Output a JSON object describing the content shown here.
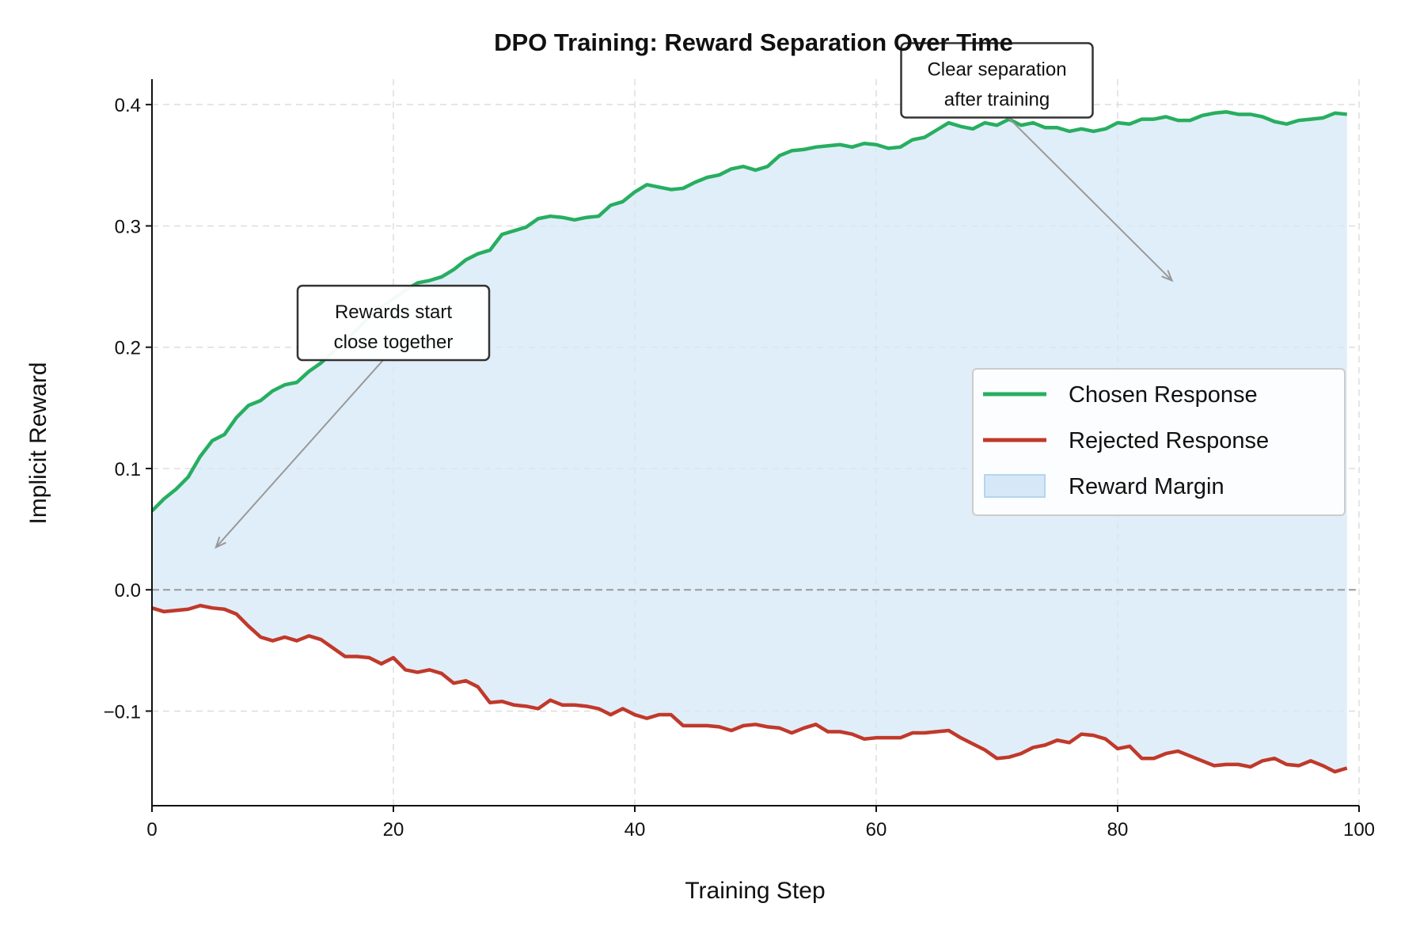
{
  "chart_data": {
    "type": "line",
    "title": "DPO Training: Reward Separation Over Time",
    "xlabel": "Training Step",
    "ylabel": "Implicit Reward",
    "xlim": [
      0,
      100
    ],
    "ylim": [
      -0.178,
      0.421
    ],
    "xticks": [
      0,
      20,
      40,
      60,
      80,
      100
    ],
    "xtick_labels": [
      "0",
      "20",
      "40",
      "60",
      "80",
      "100"
    ],
    "yticks": [
      -0.1,
      0.0,
      0.1,
      0.2,
      0.3,
      0.4
    ],
    "ytick_labels": [
      "−0.1",
      "0.0",
      "0.1",
      "0.2",
      "0.3",
      "0.4"
    ],
    "grid": true,
    "reference_line_y": 0.0,
    "legend_position": "center-right",
    "x": [
      0,
      1,
      2,
      3,
      4,
      5,
      6,
      7,
      8,
      9,
      10,
      11,
      12,
      13,
      14,
      15,
      16,
      17,
      18,
      19,
      20,
      21,
      22,
      23,
      24,
      25,
      26,
      27,
      28,
      29,
      30,
      31,
      32,
      33,
      34,
      35,
      36,
      37,
      38,
      39,
      40,
      41,
      42,
      43,
      44,
      45,
      46,
      47,
      48,
      49,
      50,
      51,
      52,
      53,
      54,
      55,
      56,
      57,
      58,
      59,
      60,
      61,
      62,
      63,
      64,
      65,
      66,
      67,
      68,
      69,
      70,
      71,
      72,
      73,
      74,
      75,
      76,
      77,
      78,
      79,
      80,
      81,
      82,
      83,
      84,
      85,
      86,
      87,
      88,
      89,
      90,
      91,
      92,
      93,
      94,
      95,
      96,
      97,
      98,
      99
    ],
    "series": [
      {
        "name": "Chosen Response",
        "color": "#27ae60",
        "values": [
          0.065,
          0.075,
          0.083,
          0.093,
          0.11,
          0.123,
          0.128,
          0.142,
          0.152,
          0.156,
          0.164,
          0.169,
          0.171,
          0.18,
          0.187,
          0.196,
          0.205,
          0.215,
          0.225,
          0.233,
          0.24,
          0.247,
          0.253,
          0.255,
          0.258,
          0.264,
          0.272,
          0.277,
          0.28,
          0.293,
          0.296,
          0.299,
          0.306,
          0.308,
          0.307,
          0.305,
          0.307,
          0.308,
          0.317,
          0.32,
          0.328,
          0.334,
          0.332,
          0.33,
          0.331,
          0.336,
          0.34,
          0.342,
          0.347,
          0.349,
          0.346,
          0.349,
          0.358,
          0.362,
          0.363,
          0.365,
          0.366,
          0.367,
          0.365,
          0.368,
          0.367,
          0.364,
          0.365,
          0.371,
          0.373,
          0.379,
          0.385,
          0.382,
          0.38,
          0.385,
          0.383,
          0.388,
          0.383,
          0.385,
          0.381,
          0.381,
          0.378,
          0.38,
          0.378,
          0.38,
          0.385,
          0.384,
          0.388,
          0.388,
          0.39,
          0.387,
          0.387,
          0.391,
          0.393,
          0.394,
          0.392,
          0.392,
          0.39,
          0.386,
          0.384,
          0.387,
          0.388,
          0.389,
          0.393,
          0.392
        ]
      },
      {
        "name": "Rejected Response",
        "color": "#c0392b",
        "values": [
          -0.015,
          -0.018,
          -0.017,
          -0.016,
          -0.013,
          -0.015,
          -0.016,
          -0.02,
          -0.03,
          -0.039,
          -0.042,
          -0.039,
          -0.042,
          -0.038,
          -0.041,
          -0.048,
          -0.055,
          -0.055,
          -0.056,
          -0.061,
          -0.056,
          -0.066,
          -0.068,
          -0.066,
          -0.069,
          -0.077,
          -0.075,
          -0.08,
          -0.093,
          -0.092,
          -0.095,
          -0.096,
          -0.098,
          -0.091,
          -0.095,
          -0.095,
          -0.096,
          -0.098,
          -0.103,
          -0.098,
          -0.103,
          -0.106,
          -0.103,
          -0.103,
          -0.112,
          -0.112,
          -0.112,
          -0.113,
          -0.116,
          -0.112,
          -0.111,
          -0.113,
          -0.114,
          -0.118,
          -0.114,
          -0.111,
          -0.117,
          -0.117,
          -0.119,
          -0.123,
          -0.122,
          -0.122,
          -0.122,
          -0.118,
          -0.118,
          -0.117,
          -0.116,
          -0.122,
          -0.127,
          -0.132,
          -0.139,
          -0.138,
          -0.135,
          -0.13,
          -0.128,
          -0.124,
          -0.126,
          -0.119,
          -0.12,
          -0.123,
          -0.131,
          -0.129,
          -0.139,
          -0.139,
          -0.135,
          -0.133,
          -0.137,
          -0.141,
          -0.145,
          -0.144,
          -0.144,
          -0.146,
          -0.141,
          -0.139,
          -0.144,
          -0.145,
          -0.141,
          -0.145,
          -0.15,
          -0.147
        ]
      }
    ],
    "fill": {
      "name": "Reward Margin",
      "color": "#d6e8f7"
    },
    "annotations": [
      {
        "lines": [
          "Rewards start",
          "close together"
        ],
        "xytext": [
          20,
          0.22
        ],
        "xy": [
          5.3,
          0.035
        ]
      },
      {
        "lines": [
          "Clear separation",
          "after training"
        ],
        "xytext": [
          70,
          0.42
        ],
        "xy": [
          84.5,
          0.255
        ]
      }
    ]
  }
}
